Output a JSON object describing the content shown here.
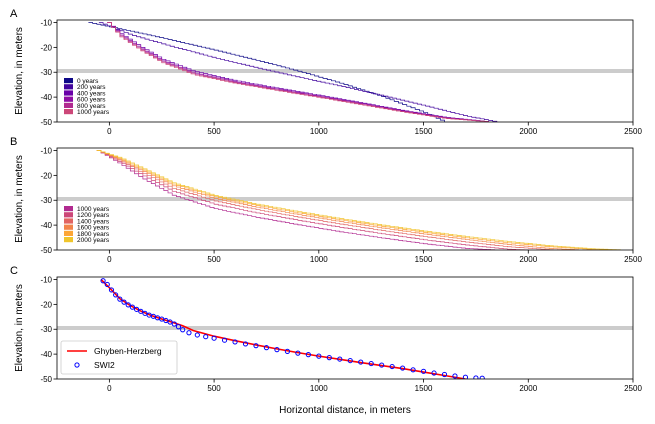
{
  "chart_data": [
    {
      "panel_label": "A",
      "type": "line",
      "ylabel": "Elevation, in meters",
      "xlim": [
        -250,
        2500
      ],
      "ylim": [
        -50,
        -9
      ],
      "xticks": [
        0,
        500,
        1000,
        1500,
        2000,
        2500
      ],
      "yticks": [
        -10,
        -20,
        -30,
        -40,
        -50
      ],
      "hline": -29.5,
      "legend": "lower-left",
      "series": [
        {
          "name": "0 years",
          "color": "#0d0887",
          "x": [
            -100,
            100,
            300,
            500,
            700,
            900,
            1100,
            1300,
            1500,
            1600
          ],
          "y": [
            -10,
            -13.5,
            -17.2,
            -21.1,
            -25.2,
            -29.6,
            -34.4,
            -39.8,
            -46.2,
            -50
          ]
        },
        {
          "name": "200 years",
          "color": "#41049d",
          "x": [
            -50,
            100,
            300,
            500,
            700,
            900,
            1100,
            1300,
            1500,
            1700,
            1850
          ],
          "y": [
            -10,
            -15,
            -19.8,
            -24.2,
            -28.2,
            -32.0,
            -35.6,
            -39.4,
            -43.4,
            -47.6,
            -50
          ]
        },
        {
          "name": "400 years",
          "color": "#6a00a8",
          "x": [
            -10,
            50,
            150,
            250,
            400,
            600,
            800,
            1000,
            1200,
            1400,
            1600,
            1820
          ],
          "y": [
            -10,
            -14.5,
            -20.0,
            -24.8,
            -29.6,
            -33.4,
            -36.4,
            -39.3,
            -42.3,
            -45.4,
            -48.1,
            -50
          ]
        },
        {
          "name": "600 years",
          "color": "#8f0da4",
          "x": [
            -10,
            50,
            150,
            250,
            400,
            600,
            800,
            1000,
            1200,
            1400,
            1600,
            1820
          ],
          "y": [
            -10,
            -15.0,
            -20.6,
            -25.4,
            -30.2,
            -33.9,
            -36.8,
            -39.7,
            -42.6,
            -45.6,
            -48.3,
            -50
          ]
        },
        {
          "name": "800 years",
          "color": "#b12a90",
          "x": [
            -10,
            50,
            150,
            250,
            400,
            600,
            800,
            1000,
            1200,
            1400,
            1600,
            1820
          ],
          "y": [
            -10,
            -15.4,
            -21.0,
            -25.8,
            -30.6,
            -34.2,
            -37.1,
            -39.9,
            -42.8,
            -45.8,
            -48.4,
            -50
          ]
        },
        {
          "name": "1000 years",
          "color": "#cc4778",
          "x": [
            -10,
            50,
            150,
            250,
            400,
            600,
            800,
            1000,
            1200,
            1400,
            1600,
            1820
          ],
          "y": [
            -10,
            -15.8,
            -21.4,
            -26.2,
            -31.0,
            -34.5,
            -37.4,
            -40.2,
            -43.1,
            -46.0,
            -48.6,
            -50
          ]
        }
      ]
    },
    {
      "panel_label": "B",
      "type": "line",
      "ylabel": "Elevation, in meters",
      "xlim": [
        -250,
        2500
      ],
      "ylim": [
        -50,
        -9
      ],
      "xticks": [
        0,
        500,
        1000,
        1500,
        2000,
        2500
      ],
      "yticks": [
        -10,
        -20,
        -30,
        -40,
        -50
      ],
      "hline": -29.5,
      "legend": "lower-left",
      "series": [
        {
          "name": "1000 years",
          "color": "#b12a90",
          "x": [
            -60,
            50,
            150,
            300,
            500,
            700,
            900,
            1100,
            1300,
            1500,
            1700,
            1850
          ],
          "y": [
            -10,
            -15.5,
            -21.0,
            -28.0,
            -33.4,
            -36.9,
            -39.9,
            -42.7,
            -45.2,
            -47.5,
            -49.4,
            -50
          ]
        },
        {
          "name": "1200 years",
          "color": "#cc4778",
          "x": [
            -60,
            50,
            150,
            300,
            500,
            700,
            900,
            1100,
            1300,
            1500,
            1700,
            1900,
            2000
          ],
          "y": [
            -10,
            -14.8,
            -19.8,
            -26.4,
            -31.6,
            -35.1,
            -38.1,
            -40.9,
            -43.5,
            -45.9,
            -48.0,
            -49.7,
            -50
          ]
        },
        {
          "name": "1400 years",
          "color": "#e16462",
          "x": [
            -60,
            50,
            150,
            300,
            500,
            700,
            900,
            1100,
            1300,
            1500,
            1700,
            1900,
            2100,
            2150
          ],
          "y": [
            -10,
            -14.2,
            -18.8,
            -25.2,
            -30.3,
            -33.8,
            -36.8,
            -39.6,
            -42.2,
            -44.6,
            -46.8,
            -48.7,
            -49.9,
            -50
          ]
        },
        {
          "name": "1600 years",
          "color": "#f2844b",
          "x": [
            -60,
            50,
            150,
            300,
            500,
            700,
            900,
            1100,
            1300,
            1500,
            1700,
            1900,
            2100,
            2250
          ],
          "y": [
            -10,
            -13.8,
            -18.1,
            -24.2,
            -29.3,
            -32.8,
            -35.8,
            -38.6,
            -41.2,
            -43.6,
            -45.8,
            -47.8,
            -49.4,
            -50
          ]
        },
        {
          "name": "1800 years",
          "color": "#fca636",
          "x": [
            -60,
            50,
            150,
            300,
            500,
            700,
            900,
            1100,
            1300,
            1500,
            1700,
            1900,
            2100,
            2300,
            2400
          ],
          "y": [
            -10,
            -13.4,
            -17.5,
            -23.5,
            -28.6,
            -32.1,
            -35.1,
            -37.9,
            -40.5,
            -42.9,
            -45.1,
            -47.1,
            -48.7,
            -49.8,
            -50
          ]
        },
        {
          "name": "2000 years",
          "color": "#f0c52b",
          "x": [
            -60,
            50,
            150,
            300,
            500,
            700,
            900,
            1100,
            1300,
            1500,
            1700,
            1900,
            2100,
            2300,
            2450
          ],
          "y": [
            -10,
            -13.0,
            -17.0,
            -23.0,
            -28.1,
            -31.6,
            -34.6,
            -37.4,
            -40.0,
            -42.4,
            -44.6,
            -46.6,
            -48.3,
            -49.5,
            -50
          ]
        }
      ]
    },
    {
      "panel_label": "C",
      "type": "line",
      "ylabel": "Elevation, in meters",
      "xlabel": "Horizontal distance, in meters",
      "xlim": [
        -250,
        2500
      ],
      "ylim": [
        -50,
        -9
      ],
      "xticks": [
        0,
        500,
        1000,
        1500,
        2000,
        2500
      ],
      "yticks": [
        -10,
        -20,
        -30,
        -40,
        -50
      ],
      "hline": -29.5,
      "legend": "lower-left",
      "series": [
        {
          "name": "Ghyben-Herzberg",
          "color": "#ff0000",
          "style": "line",
          "x": [
            -40,
            0,
            50,
            100,
            150,
            200,
            250,
            300,
            350,
            400,
            500,
            600,
            700,
            800,
            900,
            1000,
            1100,
            1200,
            1300,
            1400,
            1500,
            1600,
            1700
          ],
          "y": [
            -10,
            -13.3,
            -17.7,
            -20.5,
            -22.7,
            -24.5,
            -25.9,
            -27.2,
            -28.6,
            -30.5,
            -32.8,
            -34.6,
            -36.3,
            -37.9,
            -39.4,
            -40.8,
            -42.1,
            -43.4,
            -44.6,
            -45.8,
            -47.2,
            -48.6,
            -50
          ]
        },
        {
          "name": "SWI2",
          "color": "#0000ff",
          "style": "markers",
          "x": [
            -30,
            -10,
            10,
            30,
            50,
            70,
            90,
            110,
            130,
            150,
            170,
            190,
            210,
            230,
            250,
            270,
            290,
            310,
            330,
            350,
            380,
            420,
            460,
            500,
            550,
            600,
            650,
            700,
            750,
            800,
            850,
            900,
            950,
            1000,
            1050,
            1100,
            1150,
            1200,
            1250,
            1300,
            1350,
            1400,
            1450,
            1500,
            1550,
            1600,
            1650,
            1700,
            1750,
            1780
          ],
          "y": [
            -10.5,
            -12.0,
            -14.2,
            -16.2,
            -17.9,
            -19.1,
            -20.2,
            -21.1,
            -22.0,
            -22.8,
            -23.6,
            -24.3,
            -24.8,
            -25.4,
            -25.9,
            -26.5,
            -27.1,
            -27.9,
            -29.0,
            -30.2,
            -31.4,
            -32.3,
            -33.0,
            -33.6,
            -34.4,
            -35.1,
            -35.9,
            -36.6,
            -37.4,
            -38.2,
            -38.9,
            -39.6,
            -40.2,
            -40.8,
            -41.4,
            -42.0,
            -42.6,
            -43.2,
            -43.8,
            -44.4,
            -45.0,
            -45.6,
            -46.3,
            -46.9,
            -47.6,
            -48.2,
            -48.8,
            -49.3,
            -49.6,
            -49.7
          ]
        }
      ]
    }
  ]
}
